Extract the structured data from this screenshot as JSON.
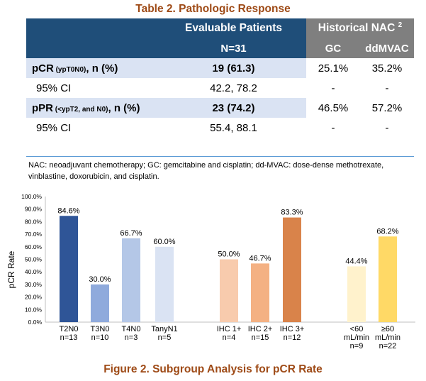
{
  "table": {
    "title": "Table 2. Pathologic Response",
    "header": {
      "evaluable": "Evaluable Patients",
      "n": "N=31",
      "historical": "Historical NAC",
      "historical_sup": "2",
      "gc": "GC",
      "ddmvac": "ddMVAC"
    },
    "rows": [
      {
        "label_main": "pCR",
        "label_small": " (ypT0N0)",
        "label_end": ", n (%)",
        "value": "19 (61.3)",
        "gc": "25.1%",
        "ddmvac": "35.2%"
      },
      {
        "label": "95% CI",
        "value": "42.2, 78.2",
        "gc": "-",
        "ddmvac": "-"
      },
      {
        "label_main": "pPR",
        "label_small": " (<ypT2, and N0)",
        "label_end": ", n (%)",
        "value": "23 (74.2)",
        "gc": "46.5%",
        "ddmvac": "57.2%"
      },
      {
        "label": "95% CI",
        "value": "55.4, 88.1",
        "gc": "-",
        "ddmvac": "-"
      }
    ],
    "footnote": "NAC: neoadjuvant chemotherapy; GC:  gemcitabine and cisplatin; dd-MVAC: dose-dense methotrexate, vinblastine, doxorubicin, and cisplatin."
  },
  "chart_data": {
    "type": "bar",
    "title": "Figure 2. Subgroup Analysis for pCR Rate",
    "ylabel": "pCR Rate",
    "ylim": [
      0,
      100
    ],
    "yticks": [
      "0.0%",
      "10.0%",
      "20.0%",
      "30.0%",
      "40.0%",
      "50.0%",
      "60.0%",
      "70.0%",
      "80.0%",
      "90.0%",
      "100.0%"
    ],
    "grid": false,
    "bars": [
      {
        "category": [
          "T2N0",
          "n=13"
        ],
        "value": 84.6,
        "label": "84.6%",
        "color": "#2f5597"
      },
      {
        "category": [
          "T3N0",
          "n=10"
        ],
        "value": 30.0,
        "label": "30.0%",
        "color": "#8faadc"
      },
      {
        "category": [
          "T4N0",
          "n=3"
        ],
        "value": 66.7,
        "label": "66.7%",
        "color": "#b4c7e7"
      },
      {
        "category": [
          "TanyN1",
          "n=5"
        ],
        "value": 60.0,
        "label": "60.0%",
        "color": "#dae3f3"
      },
      {
        "category": [
          "IHC 1+",
          "n=4"
        ],
        "value": 50.0,
        "label": "50.0%",
        "color": "#f8cbad"
      },
      {
        "category": [
          "IHC 2+",
          "n=15"
        ],
        "value": 46.7,
        "label": "46.7%",
        "color": "#f4b183"
      },
      {
        "category": [
          "IHC 3+",
          "n=12"
        ],
        "value": 83.3,
        "label": "83.3%",
        "color": "#d9834a"
      },
      {
        "category": [
          "<60",
          "mL/min",
          "n=9"
        ],
        "value": 44.4,
        "label": "44.4%",
        "color": "#fff2cc"
      },
      {
        "category": [
          "≥60",
          "mL/min",
          "n=22"
        ],
        "value": 68.2,
        "label": "68.2%",
        "color": "#ffd966"
      }
    ]
  }
}
